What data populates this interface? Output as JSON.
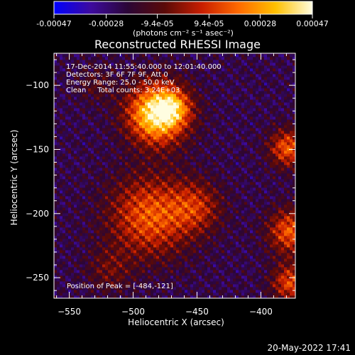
{
  "colorbar": {
    "ticks": [
      -0.00047,
      -0.00028,
      -9.4e-05,
      9.4e-05,
      0.00028,
      0.00047
    ],
    "tick_labels": [
      "-0.00047",
      "-0.00028",
      "-9.4e-05",
      "9.4e-05",
      "0.00028",
      "0.00047"
    ],
    "unit_label": "(photons cm⁻² s⁻¹ asec⁻²)",
    "range": [
      -0.00047,
      0.00047
    ],
    "gradient": [
      "#0000ff",
      "#3d0a9e",
      "#2b0636",
      "#5a0a08",
      "#c81e00",
      "#ff6a00",
      "#ffc000",
      "#fffde0"
    ]
  },
  "chart_data": {
    "type": "heatmap",
    "title": "Reconstructed RHESSI Image",
    "xlabel": "Heliocentric X (arcsec)",
    "ylabel": "Heliocentric Y (arcsec)",
    "xlim": [
      -562,
      -373
    ],
    "ylim": [
      -266,
      -75
    ],
    "xticks": [
      -550,
      -500,
      -450,
      -400
    ],
    "yticks": [
      -250,
      -200,
      -150,
      -100
    ],
    "xtick_labels": [
      "−550",
      "−500",
      "−450",
      "−400"
    ],
    "ytick_labels": [
      "−250",
      "−200",
      "−150",
      "−100"
    ],
    "info_lines": [
      "17-Dec-2014 11:55:40.000 to 12:01:40.000",
      "Detectors: 3F 6F 7F 9F, Att 0",
      "Energy Range: 25.0 - 50.0 keV",
      "Clean     Total counts: 3.24E+03"
    ],
    "peak_label": "Position of Peak = [-484,-121]",
    "peak": [
      -484,
      -121
    ],
    "sources": [
      {
        "x": -482,
        "y": -123,
        "sigma": 16,
        "amp": 1.0
      },
      {
        "x": -470,
        "y": -118,
        "sigma": 9,
        "amp": 0.35
      },
      {
        "x": -488,
        "y": -203,
        "sigma": 22,
        "amp": 0.55
      },
      {
        "x": -452,
        "y": -196,
        "sigma": 14,
        "amp": 0.35
      },
      {
        "x": -380,
        "y": -150,
        "sigma": 10,
        "amp": 0.55
      },
      {
        "x": -378,
        "y": -215,
        "sigma": 12,
        "amp": 0.55
      },
      {
        "x": -378,
        "y": -255,
        "sigma": 10,
        "amp": 0.5
      },
      {
        "x": -520,
        "y": -245,
        "sigma": 12,
        "amp": 0.2
      },
      {
        "x": -530,
        "y": -100,
        "sigma": 10,
        "amp": 0.15
      }
    ]
  },
  "timestamp": "20-May-2022 17:41"
}
